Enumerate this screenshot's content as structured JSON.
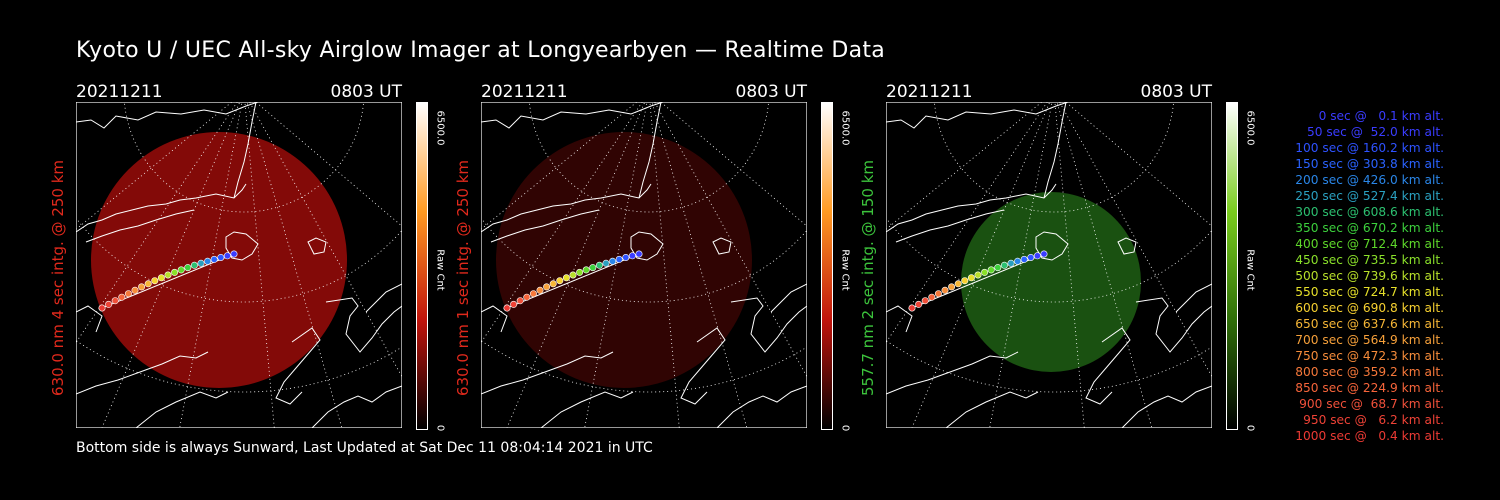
{
  "title": "Kyoto U / UEC All-sky Airglow Imager at Longyearbyen — Realtime Data",
  "footer": "Bottom side is always Sunward, Last Updated at Sat Dec 11 08:04:14 2021 in UTC",
  "panels": [
    {
      "date": "20211211",
      "time": "0803 UT",
      "label": "630.0 nm 4 sec intg. @ 250 km",
      "label_color": "#e0291c",
      "scale_max": "6500.0",
      "scale_min": "0",
      "scale_unit": "Raw Cnt",
      "glow_color": "#a80d0a",
      "glow_opacity": 0.78,
      "bar_colors": [
        "#ffffff",
        "#ff9a22",
        "#c0140c",
        "#000000"
      ]
    },
    {
      "date": "20211211",
      "time": "0803 UT",
      "label": "630.0 nm 1 sec intg. @ 250 km",
      "label_color": "#e0291c",
      "scale_max": "6500.0",
      "scale_min": "0",
      "scale_unit": "Raw Cnt",
      "glow_color": "#6a0806",
      "glow_opacity": 0.45,
      "bar_colors": [
        "#ffffff",
        "#ff9a22",
        "#c0140c",
        "#000000"
      ]
    },
    {
      "date": "20211211",
      "time": "0803 UT",
      "label": "557.7 nm 2 sec intg. @ 150 km",
      "label_color": "#3cc43c",
      "scale_max": "6500.0",
      "scale_min": "0",
      "scale_unit": "Raw Cnt",
      "glow_color": "#1f5f14",
      "glow_opacity": 0.85,
      "bar_colors": [
        "#ffffff",
        "#7acc1e",
        "#2f6e08",
        "#000000"
      ]
    }
  ],
  "legend": [
    {
      "text": "0 sec @   0.1 km alt.",
      "color": "#3a3cff"
    },
    {
      "text": "50 sec @  52.0 km alt.",
      "color": "#3a3cff"
    },
    {
      "text": "100 sec @ 160.2 km alt.",
      "color": "#2e52ff"
    },
    {
      "text": "150 sec @ 303.8 km alt.",
      "color": "#2a62ff"
    },
    {
      "text": "200 sec @ 426.0 km alt.",
      "color": "#2a86e8"
    },
    {
      "text": "250 sec @ 527.4 km alt.",
      "color": "#2aa0c0"
    },
    {
      "text": "300 sec @ 608.6 km alt.",
      "color": "#2cc070"
    },
    {
      "text": "350 sec @ 670.2 km alt.",
      "color": "#3cd03c"
    },
    {
      "text": "400 sec @ 712.4 km alt.",
      "color": "#5ed82a"
    },
    {
      "text": "450 sec @ 735.5 km alt.",
      "color": "#8ae02a"
    },
    {
      "text": "500 sec @ 739.6 km alt.",
      "color": "#b8e02a"
    },
    {
      "text": "550 sec @ 724.7 km alt.",
      "color": "#e6e02a"
    },
    {
      "text": "600 sec @ 690.8 km alt.",
      "color": "#f6d030"
    },
    {
      "text": "650 sec @ 637.6 km alt.",
      "color": "#f6b636"
    },
    {
      "text": "700 sec @ 564.9 km alt.",
      "color": "#f6a03a"
    },
    {
      "text": "750 sec @ 472.3 km alt.",
      "color": "#f68c3a"
    },
    {
      "text": "800 sec @ 359.2 km alt.",
      "color": "#f6783a"
    },
    {
      "text": "850 sec @ 224.9 km alt.",
      "color": "#f6643a"
    },
    {
      "text": "900 sec @  68.7 km alt.",
      "color": "#f0503a"
    },
    {
      "text": "950 sec @   6.2 km alt.",
      "color": "#ee4236"
    },
    {
      "text": "1000 sec @   0.4 km alt.",
      "color": "#ec3a34"
    }
  ]
}
